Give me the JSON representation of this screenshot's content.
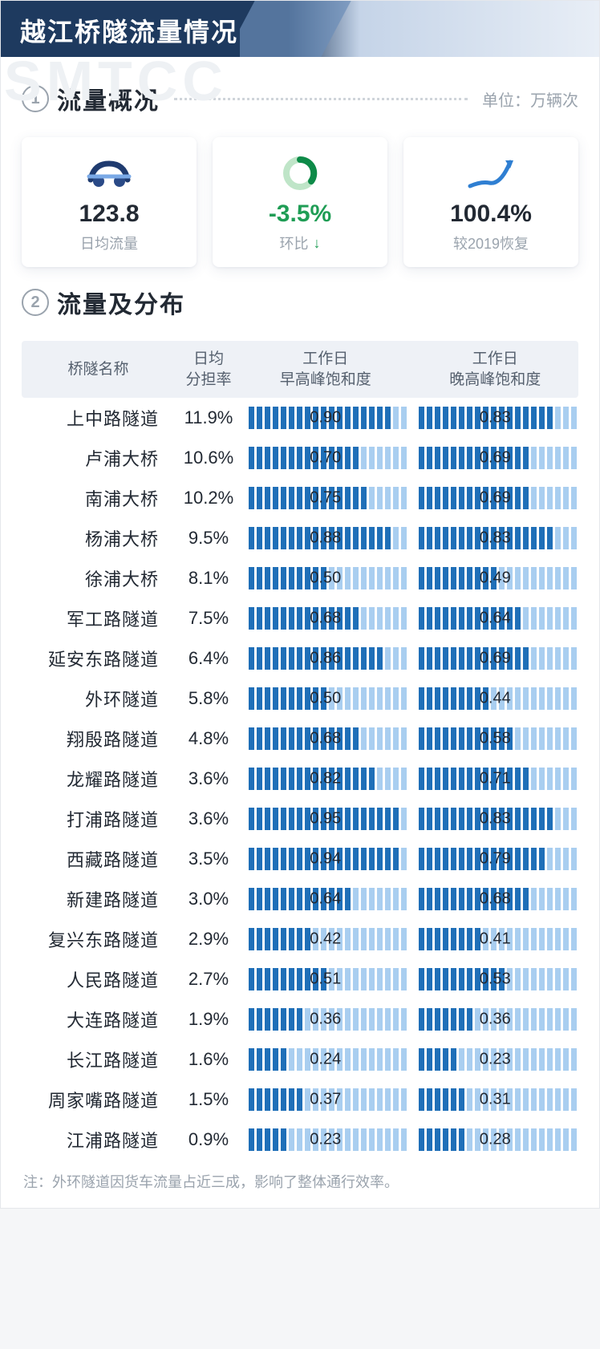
{
  "header": {
    "title": "越江桥隧流量情况"
  },
  "section1": {
    "num": "1",
    "title": "流量概况",
    "unit": "单位：万辆次"
  },
  "kpi": {
    "daily": {
      "value": "123.8",
      "label": "日均流量"
    },
    "mom": {
      "value": "-3.5%",
      "label": "环比",
      "negative": true
    },
    "recov": {
      "value": "100.4%",
      "label": "较2019恢复"
    }
  },
  "section2": {
    "num": "2",
    "title": "流量及分布"
  },
  "table": {
    "headers": {
      "name": "桥隧名称",
      "rate": "日均\n分担率",
      "morning": "工作日\n早高峰饱和度",
      "evening": "工作日\n晚高峰饱和度"
    },
    "segments": 20,
    "colors": {
      "lit": "#1f6fb8",
      "dim": "#a9cef0",
      "text": "#222933"
    },
    "rows": [
      {
        "name": "上中路隧道",
        "rate": "11.9%",
        "morning": 0.9,
        "evening": 0.83
      },
      {
        "name": "卢浦大桥",
        "rate": "10.6%",
        "morning": 0.7,
        "evening": 0.69
      },
      {
        "name": "南浦大桥",
        "rate": "10.2%",
        "morning": 0.75,
        "evening": 0.69
      },
      {
        "name": "杨浦大桥",
        "rate": "9.5%",
        "morning": 0.88,
        "evening": 0.83
      },
      {
        "name": "徐浦大桥",
        "rate": "8.1%",
        "morning": 0.5,
        "evening": 0.49
      },
      {
        "name": "军工路隧道",
        "rate": "7.5%",
        "morning": 0.68,
        "evening": 0.64
      },
      {
        "name": "延安东路隧道",
        "rate": "6.4%",
        "morning": 0.86,
        "evening": 0.69
      },
      {
        "name": "外环隧道",
        "rate": "5.8%",
        "morning": 0.5,
        "evening": 0.44
      },
      {
        "name": "翔殷路隧道",
        "rate": "4.8%",
        "morning": 0.68,
        "evening": 0.58
      },
      {
        "name": "龙耀路隧道",
        "rate": "3.6%",
        "morning": 0.82,
        "evening": 0.71
      },
      {
        "name": "打浦路隧道",
        "rate": "3.6%",
        "morning": 0.95,
        "evening": 0.83
      },
      {
        "name": "西藏路隧道",
        "rate": "3.5%",
        "morning": 0.94,
        "evening": 0.79
      },
      {
        "name": "新建路隧道",
        "rate": "3.0%",
        "morning": 0.64,
        "evening": 0.68
      },
      {
        "name": "复兴东路隧道",
        "rate": "2.9%",
        "morning": 0.42,
        "evening": 0.41
      },
      {
        "name": "人民路隧道",
        "rate": "2.7%",
        "morning": 0.51,
        "evening": 0.53
      },
      {
        "name": "大连路隧道",
        "rate": "1.9%",
        "morning": 0.36,
        "evening": 0.36
      },
      {
        "name": "长江路隧道",
        "rate": "1.6%",
        "morning": 0.24,
        "evening": 0.23
      },
      {
        "name": "周家嘴路隧道",
        "rate": "1.5%",
        "morning": 0.37,
        "evening": 0.31
      },
      {
        "name": "江浦路隧道",
        "rate": "0.9%",
        "morning": 0.23,
        "evening": 0.28
      }
    ]
  },
  "note": "注：外环隧道因货车流量占近三成，影响了整体通行效率。",
  "watermark": "SMTCC"
}
